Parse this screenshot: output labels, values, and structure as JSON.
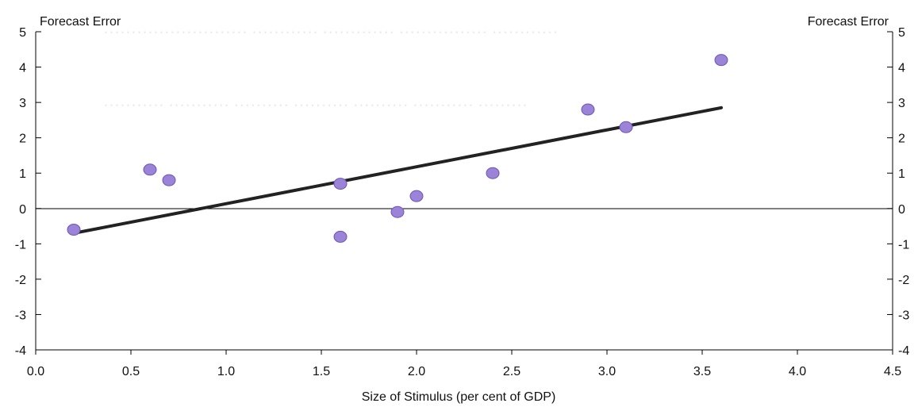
{
  "chart_data": {
    "type": "scatter",
    "title": "",
    "xlabel": "Size of Stimulus (per cent of GDP)",
    "ylabel_left": "Forecast Error",
    "ylabel_right": "Forecast Error",
    "xlim": [
      0.0,
      4.5
    ],
    "ylim": [
      -4,
      5
    ],
    "x_ticks": [
      "0.0",
      "0.5",
      "1.0",
      "1.5",
      "2.0",
      "2.5",
      "3.0",
      "3.5",
      "4.0",
      "4.5"
    ],
    "y_ticks": [
      "5",
      "4",
      "3",
      "2",
      "1",
      "0",
      "-1",
      "-2",
      "-3",
      "-4"
    ],
    "y_ticks_right": [
      "5",
      "4",
      "3",
      "2",
      "1",
      "0",
      "-1",
      "-2",
      "-3",
      "-4"
    ],
    "points": [
      {
        "x": 0.2,
        "y": -0.6
      },
      {
        "x": 0.6,
        "y": 1.1
      },
      {
        "x": 0.7,
        "y": 0.8
      },
      {
        "x": 1.6,
        "y": 0.7
      },
      {
        "x": 1.6,
        "y": -0.8
      },
      {
        "x": 1.9,
        "y": -0.1
      },
      {
        "x": 2.0,
        "y": 0.35
      },
      {
        "x": 2.4,
        "y": 1.0
      },
      {
        "x": 2.9,
        "y": 2.8
      },
      {
        "x": 3.1,
        "y": 2.3
      },
      {
        "x": 3.6,
        "y": 4.2
      }
    ],
    "trendline": {
      "x": [
        0.2,
        3.6
      ],
      "y": [
        -0.7,
        2.85
      ]
    },
    "grid": false,
    "legend": "none",
    "colors": {
      "marker": "#9b84d8",
      "marker_edge": "#6b55b8",
      "trendline": "#222222",
      "axis": "#000000"
    }
  }
}
